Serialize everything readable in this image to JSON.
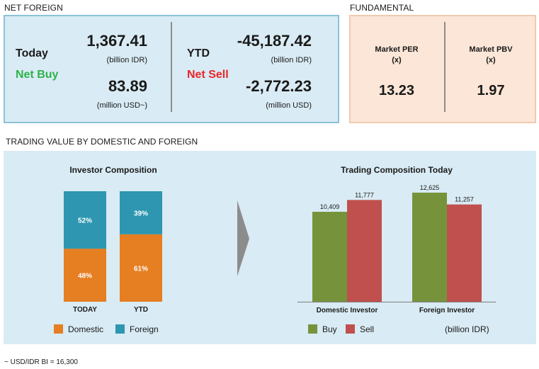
{
  "net_foreign": {
    "title": "NET FOREIGN",
    "today": {
      "label": "Today",
      "status": "Net Buy",
      "value_idr": "1,367.41",
      "unit_idr": "(billion IDR)",
      "value_usd": "83.89",
      "unit_usd": "(million USD~)"
    },
    "ytd": {
      "label": "YTD",
      "status": "Net Sell",
      "value_idr": "-45,187.42",
      "unit_idr": "(billion IDR)",
      "value_usd": "-2,772.23",
      "unit_usd": "(million USD)"
    }
  },
  "fundamental": {
    "title": "FUNDAMENTAL",
    "per": {
      "label": "Market PER",
      "sub": "(x)",
      "value": "13.23"
    },
    "pbv": {
      "label": "Market PBV",
      "sub": "(x)",
      "value": "1.97"
    }
  },
  "trading_value": {
    "title": "TRADING VALUE BY DOMESTIC AND FOREIGN"
  },
  "colors": {
    "domestic": "#e67e22",
    "foreign": "#2e96b0",
    "buy": "#76933c",
    "sell": "#c0504d",
    "arrow": "#8c8c8c"
  },
  "chart_data": [
    {
      "type": "bar",
      "stacked": true,
      "percent": true,
      "title": "Investor Composition",
      "categories": [
        "TODAY",
        "YTD"
      ],
      "series": [
        {
          "name": "Domestic",
          "values": [
            48,
            61
          ],
          "labels": [
            "48%",
            "61%"
          ]
        },
        {
          "name": "Foreign",
          "values": [
            52,
            39
          ],
          "labels": [
            "52%",
            "39%"
          ]
        }
      ],
      "ylim": [
        0,
        100
      ],
      "legend": "bottom",
      "grid": false
    },
    {
      "type": "bar",
      "title": "Trading Composition Today",
      "categories": [
        "Domestic Investor",
        "Foreign Investor"
      ],
      "series": [
        {
          "name": "Buy",
          "values": [
            10409,
            12625
          ],
          "labels": [
            "10,409",
            "12,625"
          ]
        },
        {
          "name": "Sell",
          "values": [
            11777,
            11257
          ],
          "labels": [
            "11,777",
            "11,257"
          ]
        }
      ],
      "ylim": [
        0,
        12625
      ],
      "unit_note": "(billion IDR)",
      "legend": "bottom",
      "grid": false
    }
  ],
  "footnote": "~ USD/IDR BI = 16,300"
}
